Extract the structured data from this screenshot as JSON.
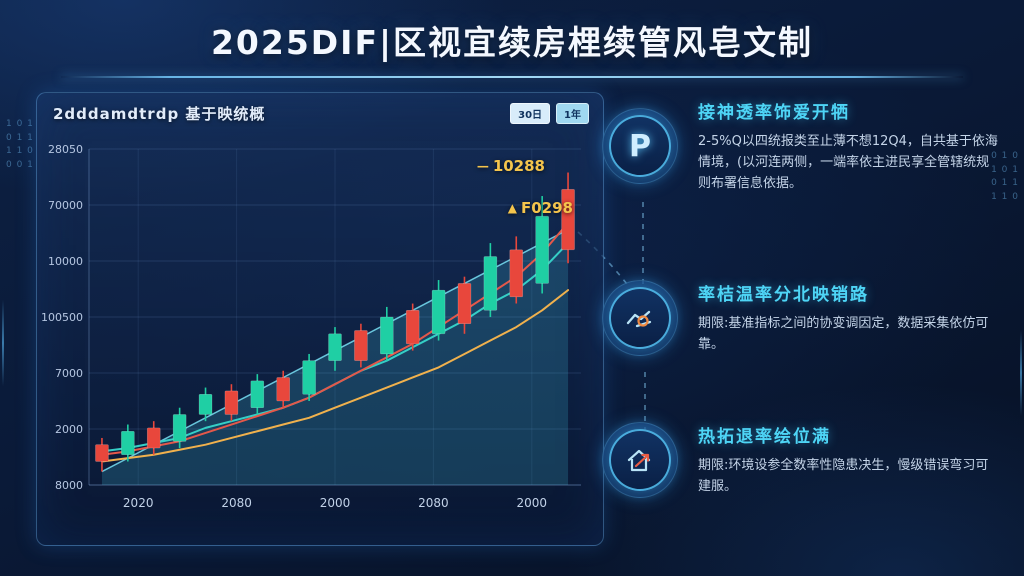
{
  "title": {
    "text": "2025DIF|区视宜续房梩续管风皂文制"
  },
  "chart_panel": {
    "title": "2dddamdtrdp 基于映统概",
    "badges": [
      "30日",
      "1年"
    ],
    "marker_1": "—",
    "price_label_1": "10288",
    "marker_2": "▲",
    "price_label_2": "F0298"
  },
  "chart_data": {
    "type": "candlestick",
    "title": "2dddamdtrdp 基于映统概",
    "y_ticks": [
      "28050",
      "70000",
      "10000",
      "100500",
      "7000",
      "2000",
      "8000"
    ],
    "x_ticks": [
      "2020",
      "2080",
      "2000",
      "2080",
      "2000"
    ],
    "scale_max": 100,
    "up_color": "#1fcfa4",
    "down_color": "#e8473c",
    "grid": true,
    "legend": [
      "30日",
      "1年"
    ],
    "annotations": [
      "10288",
      "F0298"
    ],
    "candles": [
      {
        "o": 12,
        "h": 14,
        "l": 4,
        "c": 7
      },
      {
        "o": 9,
        "h": 18,
        "l": 7,
        "c": 16
      },
      {
        "o": 17,
        "h": 19,
        "l": 9,
        "c": 11
      },
      {
        "o": 13,
        "h": 23,
        "l": 11,
        "c": 21
      },
      {
        "o": 21,
        "h": 29,
        "l": 19,
        "c": 27
      },
      {
        "o": 28,
        "h": 30,
        "l": 19,
        "c": 21
      },
      {
        "o": 23,
        "h": 33,
        "l": 21,
        "c": 31
      },
      {
        "o": 32,
        "h": 34,
        "l": 23,
        "c": 25
      },
      {
        "o": 27,
        "h": 39,
        "l": 25,
        "c": 37
      },
      {
        "o": 37,
        "h": 47,
        "l": 34,
        "c": 45
      },
      {
        "o": 46,
        "h": 48,
        "l": 35,
        "c": 37
      },
      {
        "o": 39,
        "h": 53,
        "l": 37,
        "c": 50
      },
      {
        "o": 52,
        "h": 54,
        "l": 40,
        "c": 42
      },
      {
        "o": 45,
        "h": 61,
        "l": 43,
        "c": 58
      },
      {
        "o": 60,
        "h": 62,
        "l": 45,
        "c": 48
      },
      {
        "o": 52,
        "h": 72,
        "l": 50,
        "c": 68
      },
      {
        "o": 70,
        "h": 74,
        "l": 54,
        "c": 56
      },
      {
        "o": 60,
        "h": 86,
        "l": 57,
        "c": 80
      },
      {
        "o": 88,
        "h": 93,
        "l": 66,
        "c": 70
      }
    ],
    "series": [
      {
        "name": "ma-fast",
        "color": "#35cfc6",
        "values": [
          10,
          11,
          12.5,
          14,
          17,
          19,
          21,
          23,
          26,
          30,
          34,
          37,
          41,
          45,
          49,
          54,
          58,
          64,
          72
        ]
      },
      {
        "name": "ma-slow",
        "color": "#f0b14d",
        "values": [
          7,
          8,
          9,
          10.5,
          12,
          14,
          16,
          18,
          20,
          23,
          26,
          29,
          32,
          35,
          39,
          43,
          47,
          52,
          58
        ]
      },
      {
        "name": "ma-mid",
        "color": "#e4584a",
        "values": [
          9,
          10,
          11.5,
          13,
          15.5,
          18,
          20.5,
          23,
          26,
          30,
          34,
          38,
          42,
          47,
          52,
          57,
          62,
          69,
          78
        ]
      }
    ],
    "area": {
      "values": [
        4,
        8,
        12,
        16,
        20,
        24,
        28,
        32,
        36,
        40,
        44,
        48,
        52,
        56,
        60,
        64,
        68,
        72,
        76
      ],
      "fill": "rgba(70,200,225,0.20)",
      "stroke": "rgba(120,225,245,0.85)"
    }
  },
  "sections": [
    {
      "icon_text": "P",
      "heading": "接神透率饰爱开牺",
      "body": "2-5%Q以四统报类至止薄不想12Q4，自共基于依海情境，(以河连两侧，一端率依主进民享全管辖统规则布署信息依据。"
    },
    {
      "heading": "率桔温率分北映销路",
      "body": "期限:基准指标之间的协变调因定，数据采集依仿可靠。"
    },
    {
      "heading": "热拓退率绘位满",
      "body": "期限:环境设参全数率性隐患决生，慢级错误弯习可建服。"
    }
  ],
  "deco": {
    "left_code": "1 0 1\n0 1 1\n1 1 0\n0 0 1",
    "right_code": "0 1 0\n1 0 1\n0 1 1\n1 1 0"
  },
  "colors": {
    "accent_cyan": "#4ed5f6",
    "gold": "#f4c44c",
    "candle_up": "#1fcfa4",
    "candle_down": "#e8473c",
    "panel_border": "#5fa5e1"
  }
}
